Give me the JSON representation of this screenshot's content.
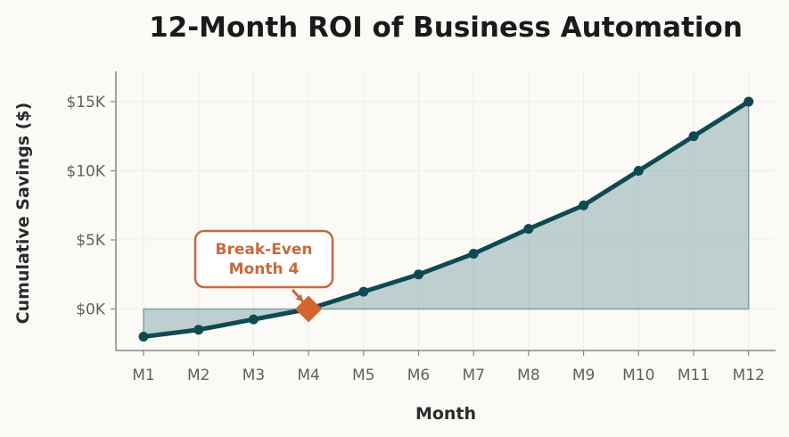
{
  "chart_data": {
    "type": "area",
    "title": "12-Month ROI of Business Automation",
    "xlabel": "Month",
    "ylabel": "Cumulative Savings ($)",
    "categories": [
      "M1",
      "M2",
      "M3",
      "M4",
      "M5",
      "M6",
      "M7",
      "M8",
      "M9",
      "M10",
      "M11",
      "M12"
    ],
    "values": [
      -2000,
      -1500,
      -750,
      0,
      1250,
      2500,
      4000,
      5800,
      7500,
      10000,
      12500,
      15000
    ],
    "ylim": [
      -3000,
      17000
    ],
    "yticks": [
      0,
      5000,
      10000,
      15000
    ],
    "ytick_labels": [
      "$0K",
      "$5K",
      "$10K",
      "$15K"
    ],
    "grid": true,
    "annotation": {
      "lines": [
        "Break-Even",
        "Month 4"
      ],
      "category": "M4",
      "value": 0
    },
    "colors": {
      "line": "#0f4a52",
      "fill": "#7fa3a5",
      "marker_highlight": "#d5652f",
      "annotation": "#c8693a",
      "background": "#fbfaf7",
      "axis": "#888888",
      "grid": "#ececea"
    }
  }
}
